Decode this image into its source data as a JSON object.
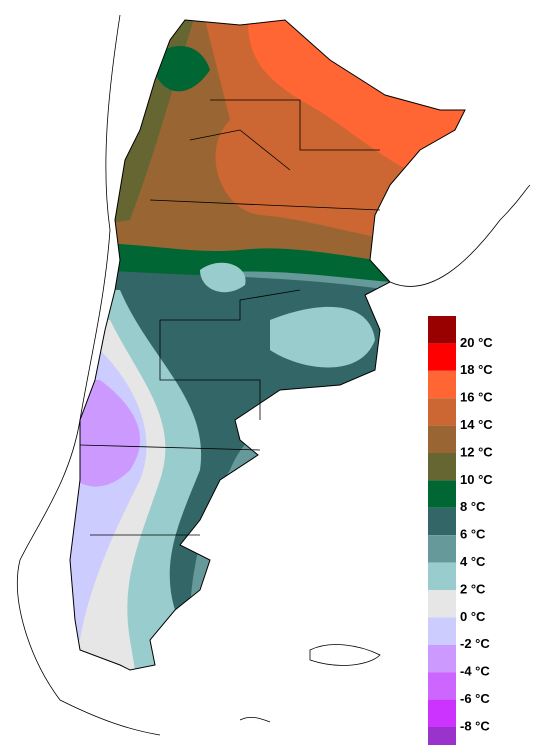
{
  "legend": {
    "labels": [
      "20 °C",
      "18 °C",
      "16 °C",
      "14 °C",
      "12 °C",
      "10 °C",
      "8 °C",
      "6 °C",
      "4 °C",
      "2 °C",
      "0 °C",
      "-2 °C",
      "-4 °C",
      "-6 °C",
      "-8 °C"
    ],
    "colors": [
      "#990000",
      "#ff0000",
      "#ff6633",
      "#cc6633",
      "#996633",
      "#666633",
      "#006633",
      "#336666",
      "#669999",
      "#99cccc",
      "#e6e6e6",
      "#ccccff",
      "#cc99ff",
      "#cc66ff",
      "#cc33ff",
      "#9933cc"
    ]
  }
}
